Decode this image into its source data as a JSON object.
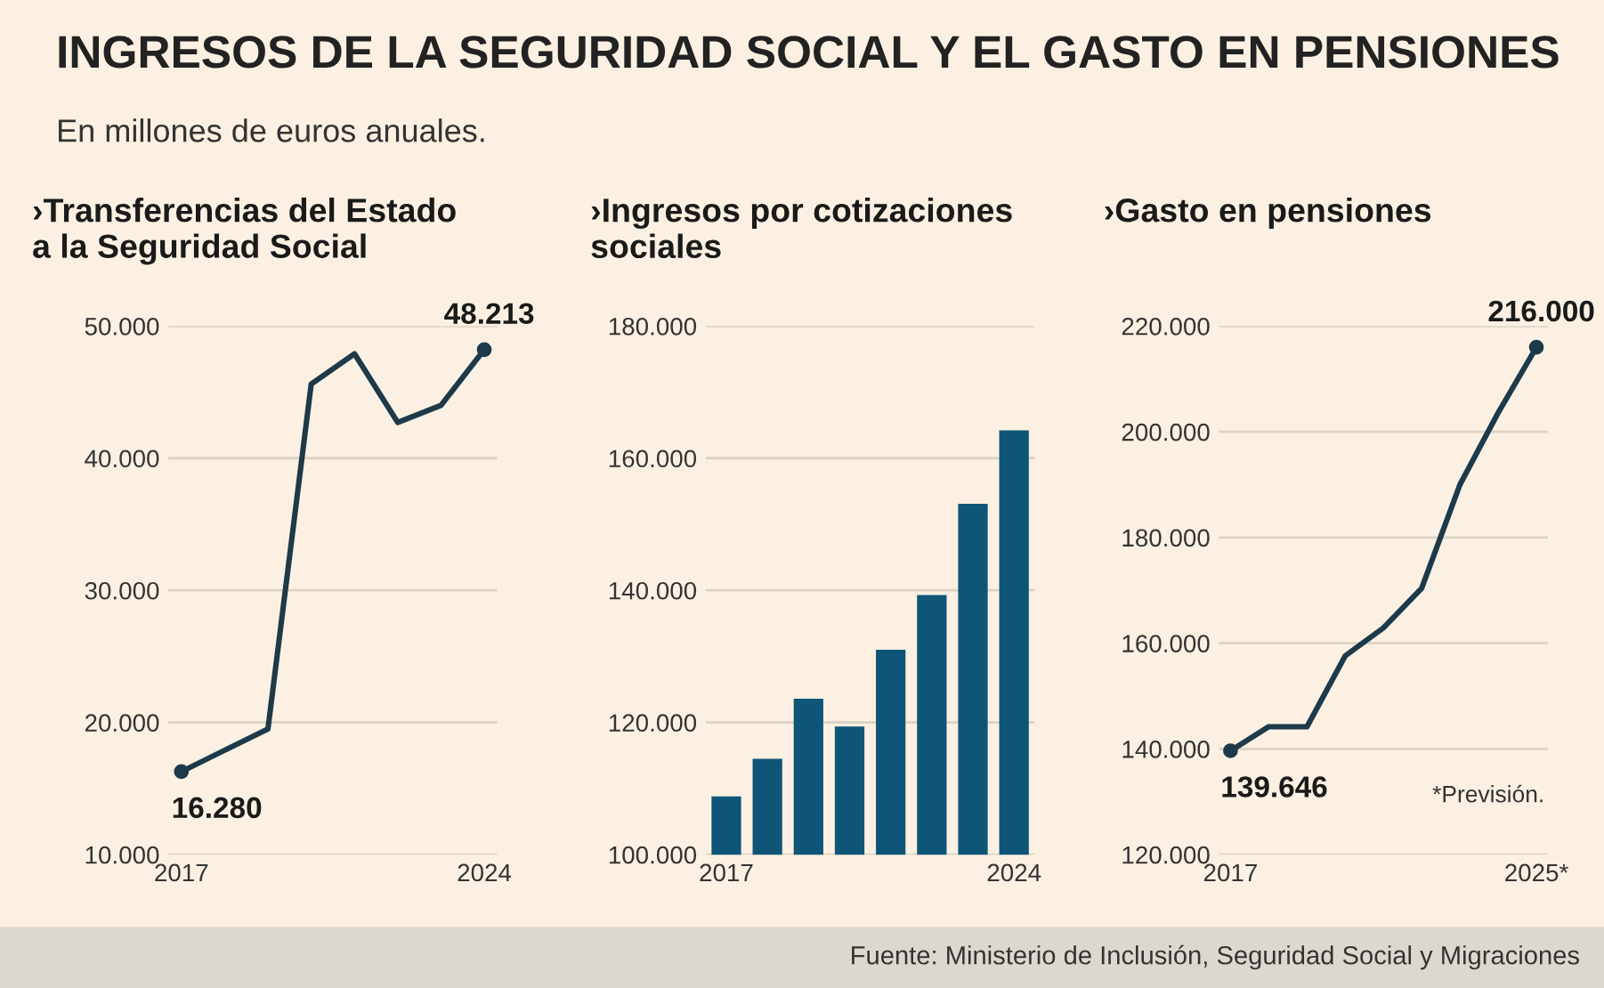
{
  "chart_data": [
    {
      "type": "line",
      "title": "›Transferencias del Estado\na la Seguridad Social",
      "annotations": [
        "INGRESOS DE LA SEGURIDAD SOCIAL Y EL GASTO EN PENSIONES",
        "En millones de euros anuales."
      ],
      "categories": [
        "2017",
        null,
        null,
        null,
        null,
        null,
        null,
        "2024"
      ],
      "series": [
        {
          "color": "#1d3a4a",
          "values": [
            16280,
            17900,
            19500,
            45600,
            47900,
            42700,
            44000,
            48213
          ],
          "value_labels": [
            "16.280",
            null,
            null,
            null,
            null,
            null,
            null,
            "48.213"
          ]
        }
      ],
      "ylim": [
        10000,
        50000
      ],
      "yticks": [
        {
          "value": 10000,
          "label": "10.000"
        },
        {
          "value": 20000,
          "label": "20.000"
        },
        {
          "value": 30000,
          "label": "30.000"
        },
        {
          "value": 40000,
          "label": "40.000"
        },
        {
          "value": 50000,
          "label": "50.000"
        }
      ],
      "grid": "y"
    },
    {
      "type": "bar",
      "title": "›Ingresos por cotizaciones\nsociales",
      "categories": [
        "2017",
        null,
        null,
        null,
        null,
        null,
        null,
        "2024"
      ],
      "series": [
        {
          "color": "#0f5577",
          "values": [
            108800,
            114500,
            123600,
            119400,
            131000,
            139300,
            153100,
            164200
          ]
        }
      ],
      "ylim": [
        100000,
        180000
      ],
      "yticks": [
        {
          "value": 100000,
          "label": "100.000"
        },
        {
          "value": 120000,
          "label": "120.000"
        },
        {
          "value": 140000,
          "label": "140.000"
        },
        {
          "value": 160000,
          "label": "160.000"
        },
        {
          "value": 180000,
          "label": "180.000"
        }
      ],
      "grid": "y"
    },
    {
      "type": "line",
      "title": "›Gasto en pensiones",
      "annotations": [
        "*Previsión.",
        "Fuente: Ministerio de Inclusión, Seguridad Social y Migraciones"
      ],
      "categories": [
        "2017",
        null,
        null,
        null,
        null,
        null,
        null,
        null,
        "2025*"
      ],
      "series": [
        {
          "color": "#1d3a4a",
          "values": [
            139646,
            144200,
            144200,
            157600,
            162900,
            170400,
            190000,
            203600,
            216000
          ],
          "value_labels": [
            "139.646",
            null,
            null,
            null,
            null,
            null,
            null,
            null,
            "216.000"
          ]
        }
      ],
      "ylim": [
        120000,
        220000
      ],
      "yticks": [
        {
          "value": 120000,
          "label": "120.000"
        },
        {
          "value": 140000,
          "label": "140.000"
        },
        {
          "value": 160000,
          "label": "160.000"
        },
        {
          "value": 180000,
          "label": "180.000"
        },
        {
          "value": 200000,
          "label": "200.000"
        },
        {
          "value": 220000,
          "label": "220.000"
        }
      ],
      "grid": "y"
    }
  ]
}
